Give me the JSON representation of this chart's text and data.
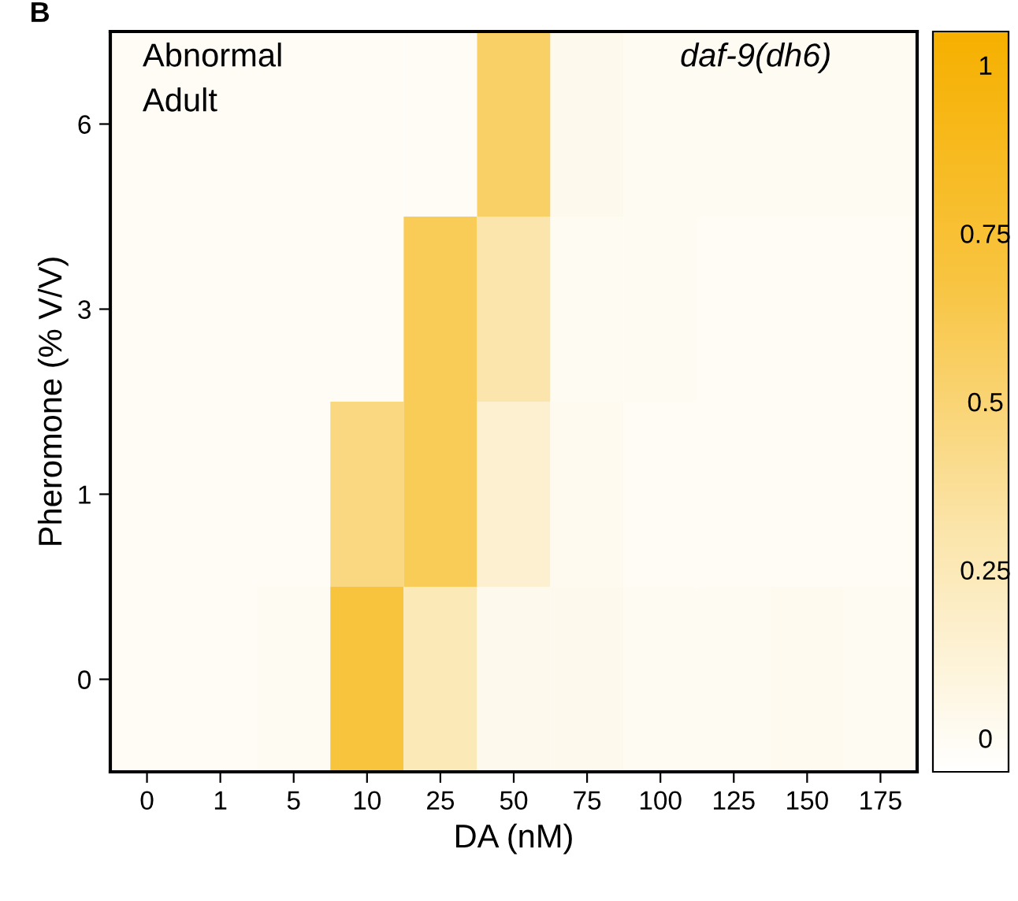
{
  "chart_data": {
    "type": "heatmap",
    "xlabel": "DA (nM)",
    "ylabel": "Pheromone (% V/V)",
    "categories": [
      "0",
      "1",
      "5",
      "10",
      "25",
      "50",
      "75",
      "100",
      "125",
      "150",
      "175"
    ],
    "y_categories": [
      "6",
      "3",
      "1",
      "0"
    ],
    "cells": [
      [
        0,
        0,
        0,
        0,
        0,
        0.55,
        0.03,
        0.01,
        0.01,
        0.01,
        0.01
      ],
      [
        0,
        0,
        0,
        0,
        0.6,
        0.3,
        0.01,
        0.01,
        0,
        0,
        0
      ],
      [
        0,
        0,
        0,
        0.45,
        0.6,
        0.15,
        0.02,
        0,
        0,
        0,
        0
      ],
      [
        0,
        0,
        0.01,
        0.7,
        0.25,
        0.03,
        0.03,
        0.01,
        0.01,
        0.02,
        0.01
      ]
    ],
    "clim": [
      -0.05,
      1.05
    ],
    "cticks": [
      0,
      0.25,
      0.5,
      0.75,
      1
    ],
    "annotations": [
      "B",
      "Abnormal\nAdult",
      "daf-9(dh6)"
    ]
  }
}
